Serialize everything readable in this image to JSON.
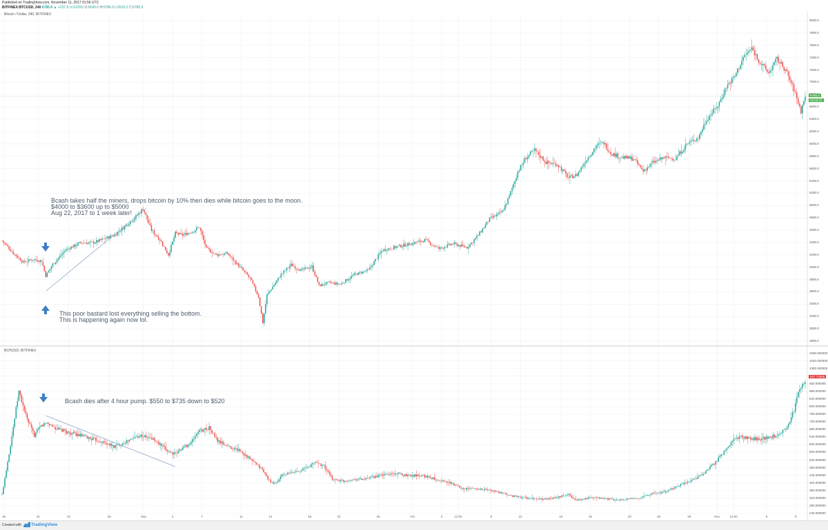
{
  "header": {
    "published": "Published on TradingView.com, November 11, 2017 01:56 UTC",
    "symbol": "BITFINEX:BTCUSD, 240",
    "last": "6785.9",
    "change": "▲ +237.9 (+3.63%)",
    "o_label": "O:",
    "o_value": "6545.0",
    "h_label": "H:",
    "h_value": "6786.0",
    "l_label": "L:",
    "l_value": "6525.2",
    "c_label": "C:",
    "c_value": "6785.9"
  },
  "panels": {
    "btc_title": "Bitcoin / Dollar, 240, BITFINEX",
    "bch_title": "BCHUSD, BITFINEX"
  },
  "annotations": {
    "btc_main_1": "Bcash takes half the miners, drops bitcoin by 10% then dies while bitcoin goes to the moon.",
    "btc_main_2": "$4000 to $3600 up to $5000",
    "btc_main_3": "Aug 22, 2017 to 1 week later!",
    "btc_bottom_1": "This poor bastard lost everything selling the bottom.",
    "btc_bottom_2": "This is happening again now lol.",
    "bch_main": "Bcash dies after 4 hour pump. $550 to $735 down to $520"
  },
  "badges": {
    "btc_price": "6785.9",
    "btc_time": "02:03:22",
    "bch_price": "937.72888"
  },
  "footer": {
    "created": "Created with",
    "brand": "TradingView"
  },
  "colors": {
    "up": "#26a69a",
    "down": "#ef5350",
    "trendline": "#8da3c4",
    "arrow": "#3f7fc5",
    "grid": "#f0f3f6",
    "badge_green": "#4caf50",
    "badge_red": "#e53935"
  },
  "chart_data": [
    {
      "type": "candlestick",
      "title": "Bitcoin / Dollar, 240, BITFINEX",
      "ylim": [
        2800,
        8000
      ],
      "yticks": [
        "8000.0",
        "7800.0",
        "7600.0",
        "7400.0",
        "7200.0",
        "7000.0",
        "6800.0",
        "6600.0",
        "6400.0",
        "6200.0",
        "6000.0",
        "5800.0",
        "5600.0",
        "5400.0",
        "5200.0",
        "5000.0",
        "4800.0",
        "4600.0",
        "4400.0",
        "4200.0",
        "4000.0",
        "3800.0",
        "3600.0",
        "3400.0",
        "3200.0",
        "3000.0",
        "2800.0"
      ],
      "anchors": [
        [
          0,
          4430
        ],
        [
          8,
          4230
        ],
        [
          15,
          4080
        ],
        [
          22,
          4130
        ],
        [
          28,
          4100
        ],
        [
          31,
          3860
        ],
        [
          36,
          4050
        ],
        [
          45,
          4280
        ],
        [
          55,
          4390
        ],
        [
          65,
          4400
        ],
        [
          80,
          4520
        ],
        [
          95,
          4820
        ],
        [
          100,
          4950
        ],
        [
          106,
          4600
        ],
        [
          112,
          4450
        ],
        [
          118,
          4200
        ],
        [
          123,
          4550
        ],
        [
          128,
          4520
        ],
        [
          135,
          4580
        ],
        [
          140,
          4650
        ],
        [
          145,
          4300
        ],
        [
          152,
          4200
        ],
        [
          160,
          4220
        ],
        [
          168,
          4020
        ],
        [
          176,
          3820
        ],
        [
          182,
          3520
        ],
        [
          185,
          3100
        ],
        [
          188,
          3550
        ],
        [
          198,
          3880
        ],
        [
          205,
          4040
        ],
        [
          212,
          3950
        ],
        [
          220,
          4010
        ],
        [
          225,
          3700
        ],
        [
          232,
          3750
        ],
        [
          240,
          3720
        ],
        [
          250,
          3880
        ],
        [
          260,
          3950
        ],
        [
          265,
          4120
        ],
        [
          270,
          4280
        ],
        [
          280,
          4330
        ],
        [
          290,
          4380
        ],
        [
          300,
          4440
        ],
        [
          310,
          4300
        ],
        [
          320,
          4380
        ],
        [
          330,
          4320
        ],
        [
          338,
          4520
        ],
        [
          346,
          4780
        ],
        [
          355,
          4900
        ],
        [
          360,
          5150
        ],
        [
          366,
          5550
        ],
        [
          372,
          5780
        ],
        [
          378,
          5900
        ],
        [
          386,
          5700
        ],
        [
          394,
          5670
        ],
        [
          402,
          5450
        ],
        [
          408,
          5500
        ],
        [
          414,
          5720
        ],
        [
          422,
          5980
        ],
        [
          427,
          6020
        ],
        [
          432,
          5850
        ],
        [
          440,
          5780
        ],
        [
          448,
          5760
        ],
        [
          455,
          5560
        ],
        [
          462,
          5700
        ],
        [
          470,
          5780
        ],
        [
          478,
          5760
        ],
        [
          486,
          6000
        ],
        [
          494,
          6100
        ],
        [
          500,
          6400
        ],
        [
          508,
          6620
        ],
        [
          514,
          6930
        ],
        [
          520,
          7100
        ],
        [
          526,
          7400
        ],
        [
          532,
          7550
        ],
        [
          538,
          7320
        ],
        [
          544,
          7150
        ],
        [
          550,
          7380
        ],
        [
          556,
          7200
        ],
        [
          562,
          6880
        ],
        [
          567,
          6530
        ],
        [
          570,
          6786
        ]
      ],
      "n": 571
    },
    {
      "type": "candlestick",
      "title": "BCHUSD, BITFINEX",
      "ylim": [
        240,
        1100
      ],
      "yticks": [
        "1080.000000",
        "1040.000000",
        "1000.000000",
        "960.000000",
        "920.000000",
        "880.000000",
        "840.000000",
        "800.000000",
        "760.000000",
        "720.000000",
        "680.000000",
        "640.000000",
        "600.000000",
        "560.000000",
        "520.000000",
        "480.000000",
        "440.000000",
        "400.000000",
        "360.000000",
        "320.000000",
        "280.000000",
        "240.000000"
      ],
      "anchors": [
        [
          0,
          340
        ],
        [
          6,
          600
        ],
        [
          12,
          880
        ],
        [
          18,
          730
        ],
        [
          23,
          650
        ],
        [
          28,
          700
        ],
        [
          32,
          715
        ],
        [
          40,
          680
        ],
        [
          50,
          660
        ],
        [
          60,
          640
        ],
        [
          70,
          620
        ],
        [
          80,
          590
        ],
        [
          90,
          620
        ],
        [
          98,
          650
        ],
        [
          108,
          630
        ],
        [
          118,
          570
        ],
        [
          124,
          550
        ],
        [
          128,
          580
        ],
        [
          135,
          610
        ],
        [
          140,
          670
        ],
        [
          148,
          690
        ],
        [
          154,
          620
        ],
        [
          162,
          590
        ],
        [
          170,
          570
        ],
        [
          178,
          520
        ],
        [
          186,
          470
        ],
        [
          192,
          400
        ],
        [
          196,
          400
        ],
        [
          200,
          440
        ],
        [
          210,
          460
        ],
        [
          218,
          480
        ],
        [
          224,
          510
        ],
        [
          230,
          490
        ],
        [
          236,
          420
        ],
        [
          244,
          410
        ],
        [
          252,
          420
        ],
        [
          260,
          420
        ],
        [
          270,
          440
        ],
        [
          280,
          450
        ],
        [
          290,
          440
        ],
        [
          300,
          440
        ],
        [
          310,
          420
        ],
        [
          320,
          400
        ],
        [
          330,
          370
        ],
        [
          340,
          370
        ],
        [
          350,
          360
        ],
        [
          360,
          340
        ],
        [
          366,
          330
        ],
        [
          375,
          320
        ],
        [
          385,
          315
        ],
        [
          395,
          320
        ],
        [
          405,
          340
        ],
        [
          410,
          310
        ],
        [
          418,
          320
        ],
        [
          428,
          320
        ],
        [
          440,
          310
        ],
        [
          455,
          320
        ],
        [
          465,
          345
        ],
        [
          475,
          355
        ],
        [
          486,
          395
        ],
        [
          494,
          420
        ],
        [
          502,
          450
        ],
        [
          510,
          510
        ],
        [
          518,
          580
        ],
        [
          524,
          640
        ],
        [
          530,
          640
        ],
        [
          540,
          630
        ],
        [
          550,
          640
        ],
        [
          560,
          680
        ],
        [
          566,
          780
        ],
        [
          570,
          900
        ],
        [
          574,
          938
        ]
      ],
      "n": 575
    }
  ],
  "xaxis": [
    {
      "label": "18",
      "i": 2
    },
    {
      "label": "21",
      "i": 29
    },
    {
      "label": "24",
      "i": 53
    },
    {
      "label": "28",
      "i": 85
    },
    {
      "label": "Sep",
      "i": 112
    },
    {
      "label": "4",
      "i": 135
    },
    {
      "label": "7",
      "i": 158
    },
    {
      "label": "11",
      "i": 189
    },
    {
      "label": "14",
      "i": 212
    },
    {
      "label": "18",
      "i": 243
    },
    {
      "label": "21",
      "i": 266
    },
    {
      "label": "25",
      "i": 297
    },
    {
      "label": "Oct",
      "i": 324
    },
    {
      "label": "4",
      "i": 347
    },
    {
      "label": "12:00",
      "i": 360
    },
    {
      "label": "9",
      "i": 386
    },
    {
      "label": "12",
      "i": 409
    },
    {
      "label": "16",
      "i": 441
    },
    {
      "label": "19",
      "i": 464
    },
    {
      "label": "23",
      "i": 495
    },
    {
      "label": "26",
      "i": 518
    },
    {
      "label": "29",
      "i": 542
    },
    {
      "label": "Nov",
      "i": 564
    },
    {
      "label": "12:00",
      "i": 577
    },
    {
      "label": "6",
      "i": 603
    },
    {
      "label": "9",
      "i": 626
    }
  ]
}
